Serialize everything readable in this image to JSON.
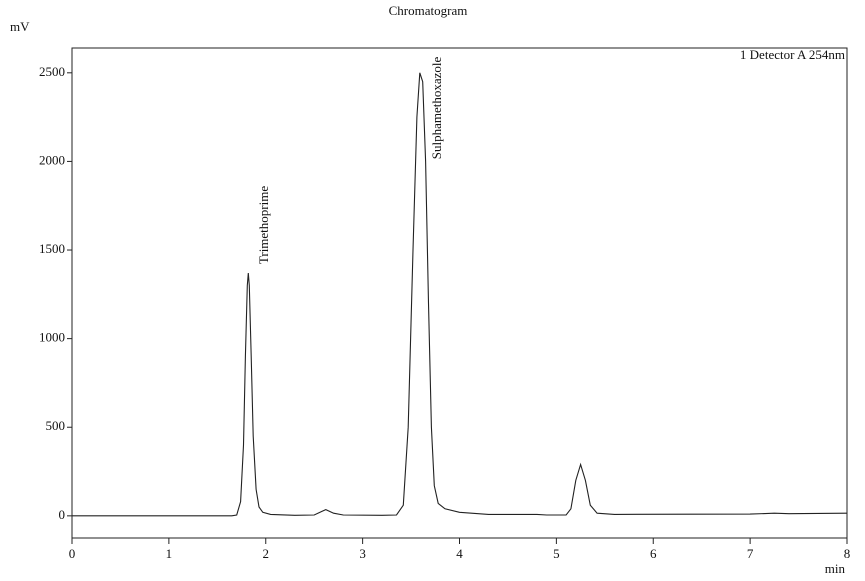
{
  "chart_data": {
    "type": "line",
    "title": "Chromatogram",
    "y_label": "mV",
    "x_label": "min",
    "legend_text": "1 Detector A 254nm",
    "annotations": [
      "Trimethoprime",
      "Sulphamethoxazole"
    ],
    "x": [
      0,
      1.0,
      1.65,
      1.7,
      1.74,
      1.77,
      1.79,
      1.81,
      1.82,
      1.83,
      1.85,
      1.87,
      1.9,
      1.93,
      1.97,
      2.05,
      2.3,
      2.5,
      2.58,
      2.62,
      2.7,
      2.8,
      3.2,
      3.35,
      3.42,
      3.47,
      3.52,
      3.56,
      3.59,
      3.62,
      3.65,
      3.68,
      3.71,
      3.74,
      3.78,
      3.85,
      4.0,
      4.3,
      4.8,
      4.9,
      5.1,
      5.15,
      5.2,
      5.25,
      5.3,
      5.35,
      5.42,
      5.6,
      7.0,
      7.25,
      7.4,
      8.0
    ],
    "series": [
      {
        "name": "Detector A",
        "color": "#222222",
        "values": [
          0,
          0,
          0,
          5,
          80,
          400,
          900,
          1300,
          1370,
          1300,
          900,
          450,
          150,
          50,
          20,
          8,
          3,
          5,
          25,
          35,
          15,
          5,
          3,
          5,
          60,
          500,
          1500,
          2250,
          2500,
          2450,
          2000,
          1200,
          500,
          170,
          70,
          40,
          20,
          8,
          8,
          5,
          5,
          40,
          200,
          290,
          200,
          60,
          15,
          8,
          10,
          15,
          12,
          15
        ]
      }
    ],
    "xlim": [
      0,
      8
    ],
    "ylim": [
      -125,
      2640
    ],
    "xticks": [
      0,
      1,
      2,
      3,
      4,
      5,
      6,
      7,
      8
    ],
    "yticks": [
      0,
      500,
      1000,
      1500,
      2000,
      2500
    ]
  }
}
